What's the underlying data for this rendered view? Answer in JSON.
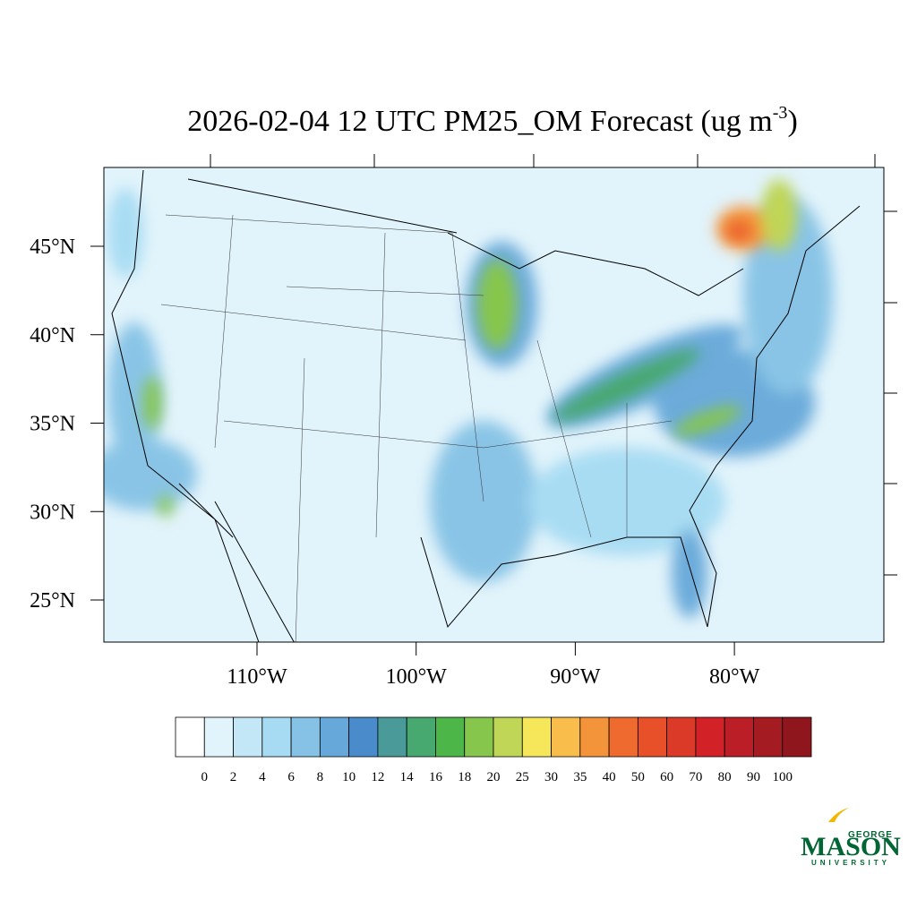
{
  "title": {
    "main": "2026-02-04 12 UTC PM25_OM Forecast (ug m",
    "superscript": "-3",
    "end": ")"
  },
  "map": {
    "lat_ticks": [
      {
        "value": 45,
        "label": "45°N"
      },
      {
        "value": 40,
        "label": "40°N"
      },
      {
        "value": 35,
        "label": "35°N"
      },
      {
        "value": 30,
        "label": "30°N"
      },
      {
        "value": 25,
        "label": "25°N"
      }
    ],
    "lon_ticks": [
      {
        "value": -110,
        "label": "110°W"
      },
      {
        "value": -100,
        "label": "100°W"
      },
      {
        "value": -90,
        "label": "90°W"
      },
      {
        "value": -80,
        "label": "80°W"
      }
    ]
  },
  "colorbar": {
    "levels": [
      0,
      2,
      4,
      6,
      8,
      10,
      12,
      14,
      16,
      18,
      20,
      25,
      30,
      35,
      40,
      50,
      60,
      70,
      80,
      90,
      100
    ],
    "colors": [
      "#ffffff",
      "#e1f3fb",
      "#c4e7f7",
      "#a6dbf3",
      "#85c2e5",
      "#66a8d9",
      "#4a8ccb",
      "#4a9a9a",
      "#47a870",
      "#4cb648",
      "#86c64c",
      "#c0d656",
      "#f6e65a",
      "#f8bd4a",
      "#f4943a",
      "#ee6a2e",
      "#e8502a",
      "#dc3a28",
      "#d22228",
      "#bb1e26",
      "#a51b22",
      "#8e161c"
    ]
  },
  "logo": {
    "top": "GEORGE",
    "main": "MASON",
    "bottom": "UNIVERSITY"
  }
}
